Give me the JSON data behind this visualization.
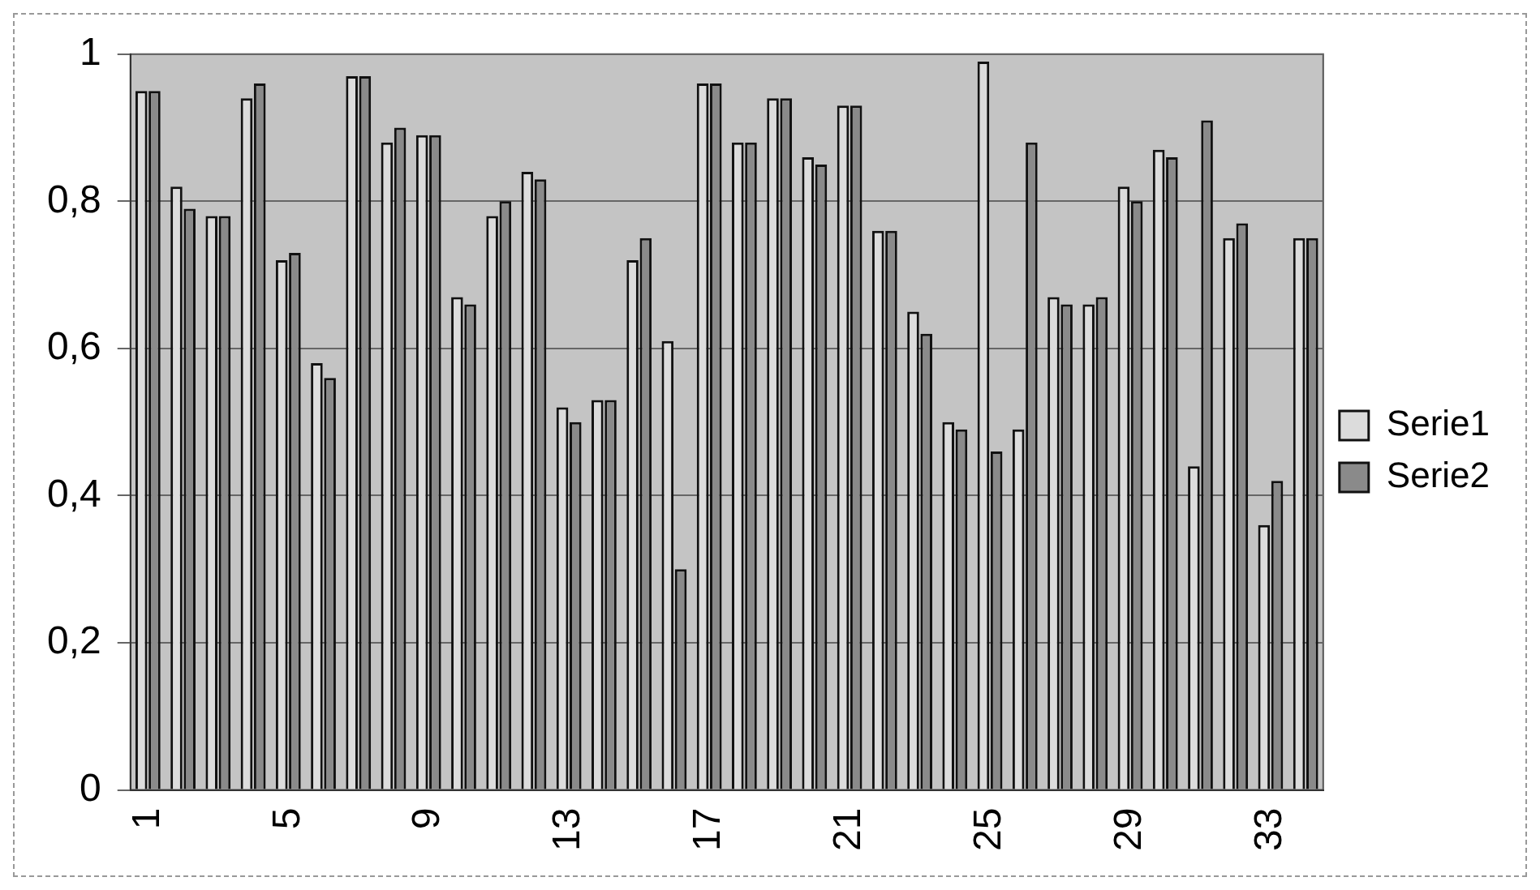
{
  "chart_data": {
    "type": "bar",
    "categories": [
      "1",
      null,
      null,
      null,
      "5",
      null,
      null,
      null,
      "9",
      null,
      null,
      null,
      "13",
      null,
      null,
      null,
      "17",
      null,
      null,
      null,
      "21",
      null,
      null,
      null,
      "25",
      null,
      null,
      null,
      "29",
      null,
      null,
      null,
      "33",
      null
    ],
    "series": [
      {
        "name": "Serie1",
        "color": "#dcdcdc",
        "values": [
          0.95,
          0.82,
          0.78,
          0.94,
          0.72,
          0.58,
          0.97,
          0.88,
          0.89,
          0.67,
          0.78,
          0.84,
          0.52,
          0.53,
          0.72,
          0.61,
          0.96,
          0.88,
          0.94,
          0.86,
          0.93,
          0.76,
          0.65,
          0.5,
          0.99,
          0.49,
          0.67,
          0.66,
          0.82,
          0.87,
          0.44,
          0.75,
          0.36,
          0.75
        ]
      },
      {
        "name": "Serie2",
        "color": "#8a8a8a",
        "values": [
          0.95,
          0.79,
          0.78,
          0.96,
          0.73,
          0.56,
          0.97,
          0.9,
          0.89,
          0.66,
          0.8,
          0.83,
          0.5,
          0.53,
          0.75,
          0.3,
          0.96,
          0.88,
          0.94,
          0.85,
          0.93,
          0.76,
          0.62,
          0.49,
          0.46,
          0.88,
          0.66,
          0.67,
          0.8,
          0.86,
          0.91,
          0.77,
          0.42,
          0.75
        ]
      }
    ],
    "ylim": [
      0,
      1
    ],
    "yticks": [
      0,
      {
        "value": 0.2,
        "label": "0,2"
      },
      {
        "value": 0.4,
        "label": "0,4"
      },
      {
        "value": 0.6,
        "label": "0,6"
      },
      {
        "value": 0.8,
        "label": "0,8"
      },
      1
    ],
    "grid": "y",
    "legend": "right"
  }
}
